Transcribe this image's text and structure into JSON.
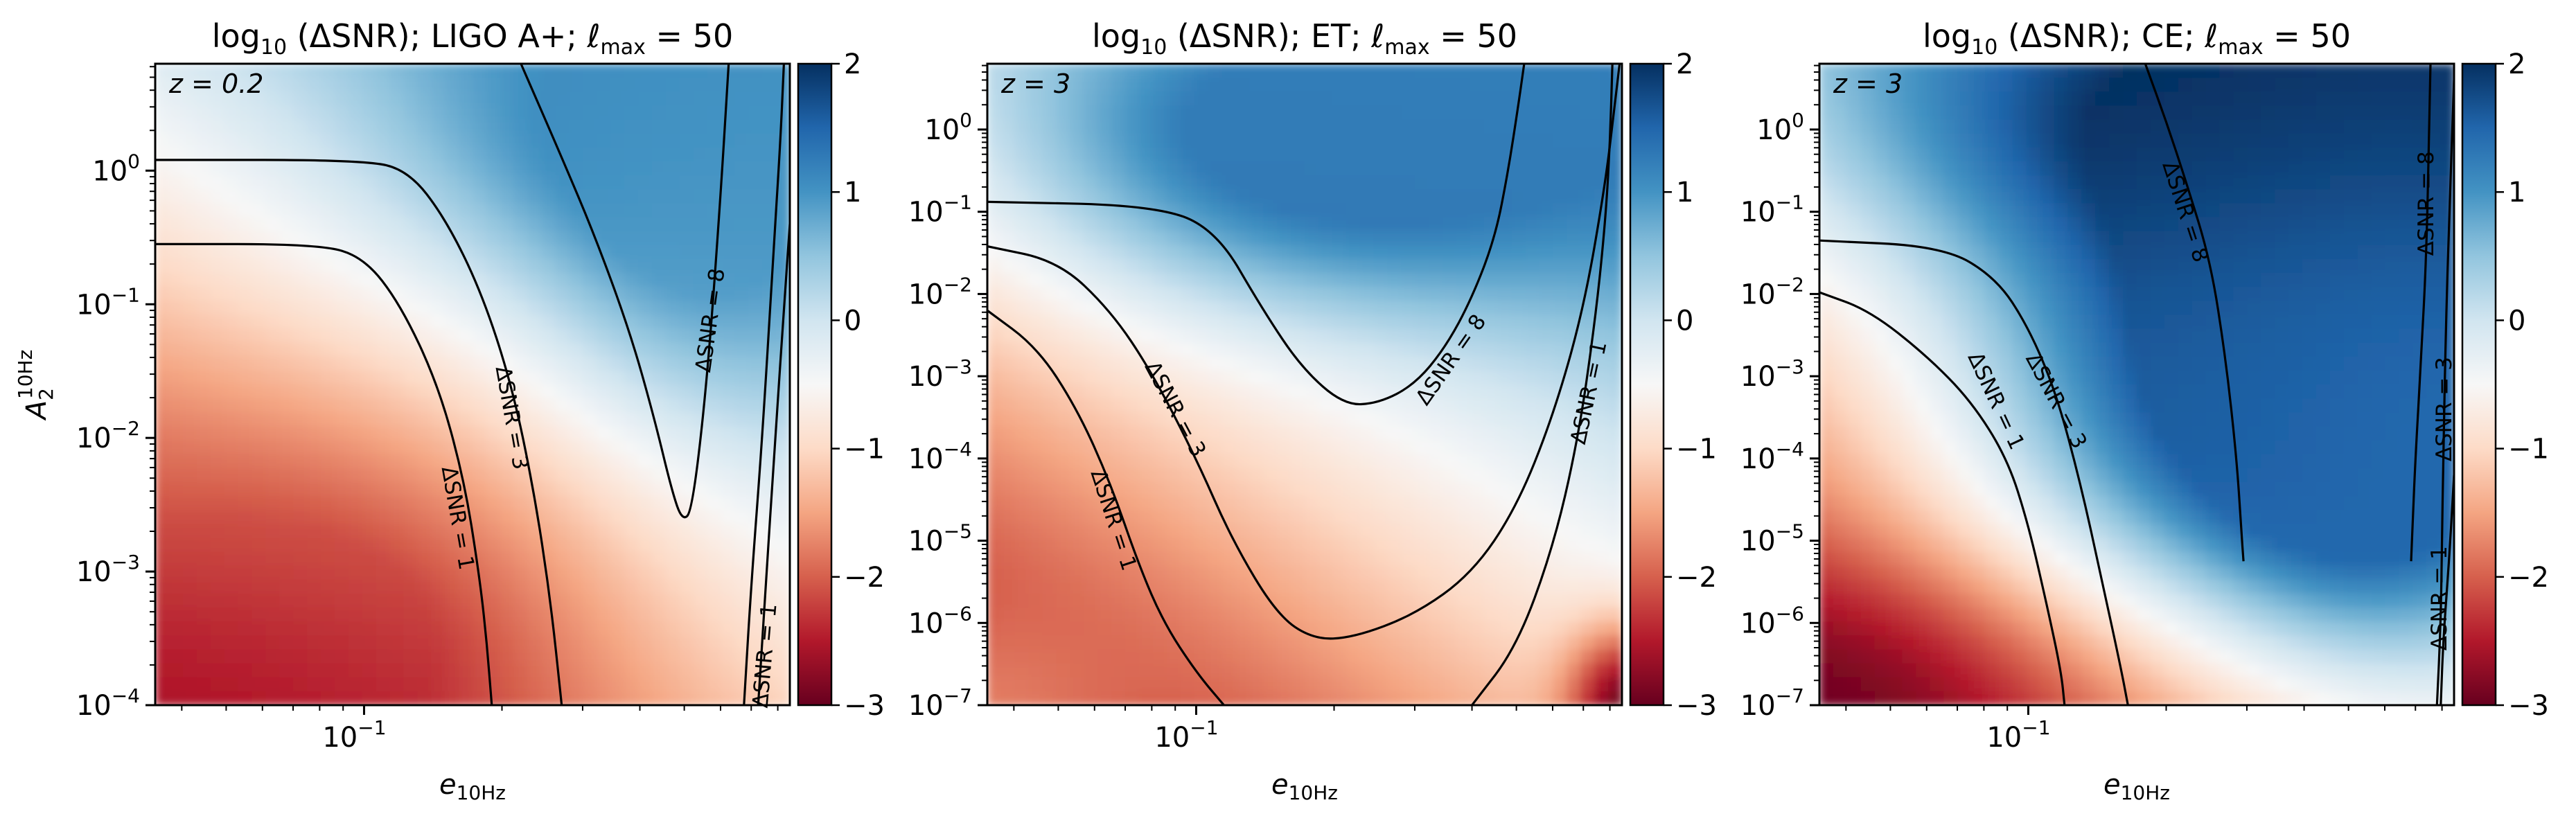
{
  "figure": {
    "shared_xlabel": "e",
    "shared_xlabel_sub": "10Hz",
    "shared_ylabel": "A",
    "shared_ylabel_sub": "2",
    "shared_ylabel_sup": "10Hz"
  },
  "colorbar": {
    "ticks": [
      "2",
      "1",
      "0",
      "−1",
      "−2",
      "−3"
    ],
    "range": [
      -3,
      2
    ],
    "colors": {
      "low": "#67001f",
      "mid_low": "#f4a582",
      "neutral": "#f7f7f7",
      "mid_high": "#92c5de",
      "high": "#053061"
    }
  },
  "chart_data": [
    {
      "type": "heatmap",
      "title_prefix": "log",
      "title_sub": "10",
      "title_quantity": " (ΔSNR); LIGO A+; ",
      "title_ell": "ℓ",
      "title_ell_sub": "max",
      "title_suffix": " = 50",
      "redshift": "z = 0.2",
      "xscale": "log",
      "yscale": "log",
      "xlim": [
        0.035,
        0.85
      ],
      "ylim_exp": [
        -4,
        0.8
      ],
      "xticks": [
        {
          "value": 0.1,
          "label": "10",
          "exp": "−1"
        }
      ],
      "yticks": [
        {
          "exp_value": 0,
          "label": "10",
          "exp": "0"
        },
        {
          "exp_value": -1,
          "label": "10",
          "exp": "−1"
        },
        {
          "exp_value": -2,
          "label": "10",
          "exp": "−2"
        },
        {
          "exp_value": -3,
          "label": "10",
          "exp": "−3"
        },
        {
          "exp_value": -4,
          "label": "10",
          "exp": "−4"
        }
      ],
      "show_ylabel": true,
      "contours": [
        {
          "label": "ΔSNR = 1",
          "label_at": [
            0.16,
            -2.6
          ],
          "label_angle": 80,
          "points": [
            [
              0.035,
              -0.55
            ],
            [
              0.08,
              -0.55
            ],
            [
              0.1,
              -0.65
            ],
            [
              0.12,
              -1.0
            ],
            [
              0.145,
              -1.6
            ],
            [
              0.165,
              -2.3
            ],
            [
              0.178,
              -3.0
            ],
            [
              0.185,
              -3.5
            ],
            [
              0.19,
              -4.0
            ]
          ]
        },
        {
          "label": "ΔSNR = 3",
          "label_at": [
            0.21,
            -1.85
          ],
          "label_angle": 80,
          "points": [
            [
              0.035,
              0.08
            ],
            [
              0.1,
              0.08
            ],
            [
              0.125,
              0.0
            ],
            [
              0.15,
              -0.35
            ],
            [
              0.18,
              -0.9
            ],
            [
              0.21,
              -1.6
            ],
            [
              0.235,
              -2.4
            ],
            [
              0.255,
              -3.2
            ],
            [
              0.27,
              -4.0
            ]
          ]
        },
        {
          "label": "ΔSNR = 8",
          "label_at": [
            0.57,
            -1.12
          ],
          "label_angle": -82,
          "points": [
            [
              0.22,
              0.8
            ],
            [
              0.27,
              0.1
            ],
            [
              0.32,
              -0.5
            ],
            [
              0.38,
              -1.2
            ],
            [
              0.43,
              -1.85
            ],
            [
              0.47,
              -2.4
            ],
            [
              0.495,
              -2.62
            ],
            [
              0.52,
              -2.55
            ],
            [
              0.56,
              -1.6
            ],
            [
              0.6,
              -0.2
            ],
            [
              0.625,
              0.8
            ]
          ]
        },
        {
          "label": "ΔSNR = 1",
          "label_at": [
            0.75,
            -3.63
          ],
          "label_angle": -85,
          "points": [
            [
              0.675,
              -4.0
            ],
            [
              0.7,
              -3.1
            ],
            [
              0.74,
              -2.0
            ],
            [
              0.78,
              -0.7
            ],
            [
              0.81,
              0.2
            ],
            [
              0.825,
              0.8
            ]
          ]
        },
        {
          "label": "",
          "points": [
            [
              0.725,
              -4.0
            ],
            [
              0.75,
              -3.2
            ],
            [
              0.79,
              -2.0
            ],
            [
              0.83,
              -0.9
            ],
            [
              0.85,
              -0.4
            ]
          ]
        }
      ],
      "field_blobs": [
        {
          "at": [
            0.42,
            0.5
          ],
          "value": 1.1,
          "spread": [
            0.5,
            1.1
          ]
        },
        {
          "at": [
            0.6,
            -0.3
          ],
          "value": 0.9,
          "spread": [
            0.35,
            1.4
          ]
        },
        {
          "at": [
            0.04,
            -4.0
          ],
          "value": -2.9,
          "spread": [
            0.55,
            1.0
          ]
        },
        {
          "at": [
            0.06,
            -3.2
          ],
          "value": -2.0,
          "spread": [
            0.7,
            1.5
          ]
        }
      ]
    },
    {
      "type": "heatmap",
      "title_prefix": "log",
      "title_sub": "10",
      "title_quantity": " (ΔSNR); ET; ",
      "title_ell": "ℓ",
      "title_ell_sub": "max",
      "title_suffix": " = 50",
      "redshift": "z = 3",
      "xscale": "log",
      "yscale": "log",
      "xlim": [
        0.035,
        0.85
      ],
      "ylim_exp": [
        -7,
        0.8
      ],
      "xticks": [
        {
          "value": 0.1,
          "label": "10",
          "exp": "−1"
        }
      ],
      "yticks": [
        {
          "exp_value": 0,
          "label": "10",
          "exp": "0"
        },
        {
          "exp_value": -1,
          "label": "10",
          "exp": "−1"
        },
        {
          "exp_value": -2,
          "label": "10",
          "exp": "−2"
        },
        {
          "exp_value": -3,
          "label": "10",
          "exp": "−3"
        },
        {
          "exp_value": -4,
          "label": "10",
          "exp": "−4"
        },
        {
          "exp_value": -5,
          "label": "10",
          "exp": "−5"
        },
        {
          "exp_value": -6,
          "label": "10",
          "exp": "−6"
        },
        {
          "exp_value": -7,
          "label": "10",
          "exp": "−7"
        }
      ],
      "show_ylabel": false,
      "contours": [
        {
          "label": "ΔSNR = 1",
          "label_at": [
            0.066,
            -4.75
          ],
          "label_angle": 72,
          "points": [
            [
              0.035,
              -2.2
            ],
            [
              0.045,
              -2.65
            ],
            [
              0.055,
              -3.4
            ],
            [
              0.065,
              -4.3
            ],
            [
              0.075,
              -5.3
            ],
            [
              0.085,
              -6.0
            ],
            [
              0.1,
              -6.6
            ],
            [
              0.115,
              -7.0
            ]
          ]
        },
        {
          "label": "ΔSNR = 3",
          "label_at": [
            0.09,
            -3.4
          ],
          "label_angle": 62,
          "points": [
            [
              0.035,
              -1.42
            ],
            [
              0.05,
              -1.6
            ],
            [
              0.065,
              -2.2
            ],
            [
              0.08,
              -2.95
            ],
            [
              0.1,
              -4.0
            ],
            [
              0.12,
              -5.0
            ],
            [
              0.15,
              -5.9
            ],
            [
              0.18,
              -6.2
            ],
            [
              0.22,
              -6.18
            ],
            [
              0.3,
              -5.9
            ],
            [
              0.4,
              -5.4
            ],
            [
              0.5,
              -4.6
            ],
            [
              0.6,
              -3.5
            ],
            [
              0.7,
              -2.2
            ],
            [
              0.78,
              -0.7
            ],
            [
              0.82,
              0.3
            ],
            [
              0.84,
              0.8
            ]
          ]
        },
        {
          "label": "ΔSNR = 1",
          "label_at": [
            0.72,
            -3.2
          ],
          "label_angle": -78,
          "points": [
            [
              0.4,
              -7.0
            ],
            [
              0.5,
              -6.3
            ],
            [
              0.6,
              -5.1
            ],
            [
              0.68,
              -3.8
            ],
            [
              0.74,
              -2.4
            ],
            [
              0.78,
              -1.2
            ],
            [
              0.8,
              -0.2
            ],
            [
              0.81,
              0.8
            ]
          ]
        },
        {
          "label": "ΔSNR = 8",
          "label_at": [
            0.36,
            -2.8
          ],
          "label_angle": -55,
          "points": [
            [
              0.035,
              -0.88
            ],
            [
              0.08,
              -0.92
            ],
            [
              0.11,
              -1.2
            ],
            [
              0.14,
              -2.2
            ],
            [
              0.17,
              -2.9
            ],
            [
              0.21,
              -3.35
            ],
            [
              0.25,
              -3.33
            ],
            [
              0.3,
              -3.1
            ],
            [
              0.35,
              -2.65
            ],
            [
              0.4,
              -2.05
            ],
            [
              0.45,
              -1.3
            ],
            [
              0.48,
              -0.5
            ],
            [
              0.505,
              0.3
            ],
            [
              0.52,
              0.8
            ]
          ]
        }
      ],
      "field_blobs": [
        {
          "at": [
            0.25,
            -0.5
          ],
          "value": 1.3,
          "spread": [
            0.7,
            1.7
          ]
        },
        {
          "at": [
            0.5,
            0.6
          ],
          "value": 1.2,
          "spread": [
            0.8,
            1.3
          ]
        },
        {
          "at": [
            0.035,
            -7.0
          ],
          "value": -1.8,
          "spread": [
            0.45,
            1.6
          ]
        },
        {
          "at": [
            0.85,
            -7.0
          ],
          "value": -2.9,
          "spread": [
            0.12,
            0.9
          ]
        }
      ]
    },
    {
      "type": "heatmap",
      "title_prefix": "log",
      "title_sub": "10",
      "title_quantity": " (ΔSNR); CE; ",
      "title_ell": "ℓ",
      "title_ell_sub": "max",
      "title_suffix": " = 50",
      "redshift": "z = 3",
      "xscale": "log",
      "yscale": "log",
      "xlim": [
        0.035,
        0.85
      ],
      "ylim_exp": [
        -7,
        0.8
      ],
      "xticks": [
        {
          "value": 0.1,
          "label": "10",
          "exp": "−1"
        }
      ],
      "yticks": [
        {
          "exp_value": 0,
          "label": "10",
          "exp": "0"
        },
        {
          "exp_value": -1,
          "label": "10",
          "exp": "−1"
        },
        {
          "exp_value": -2,
          "label": "10",
          "exp": "−2"
        },
        {
          "exp_value": -3,
          "label": "10",
          "exp": "−3"
        },
        {
          "exp_value": -4,
          "label": "10",
          "exp": "−4"
        },
        {
          "exp_value": -5,
          "label": "10",
          "exp": "−5"
        },
        {
          "exp_value": -6,
          "label": "10",
          "exp": "−6"
        },
        {
          "exp_value": -7,
          "label": "10",
          "exp": "−7"
        }
      ],
      "show_ylabel": false,
      "contours": [
        {
          "label": "ΔSNR = 1",
          "label_at": [
            0.085,
            -3.3
          ],
          "label_angle": 65,
          "points": [
            [
              0.035,
              -1.98
            ],
            [
              0.045,
              -2.2
            ],
            [
              0.06,
              -2.75
            ],
            [
              0.075,
              -3.3
            ],
            [
              0.09,
              -4.0
            ],
            [
              0.1,
              -4.8
            ],
            [
              0.11,
              -5.8
            ],
            [
              0.118,
              -6.6
            ],
            [
              0.12,
              -7.0
            ]
          ]
        },
        {
          "label": "ΔSNR = 3",
          "label_at": [
            0.115,
            -3.3
          ],
          "label_angle": 62,
          "points": [
            [
              0.035,
              -1.35
            ],
            [
              0.065,
              -1.42
            ],
            [
              0.085,
              -1.8
            ],
            [
              0.1,
              -2.4
            ],
            [
              0.115,
              -3.2
            ],
            [
              0.13,
              -4.3
            ],
            [
              0.145,
              -5.5
            ],
            [
              0.16,
              -6.6
            ],
            [
              0.165,
              -7.0
            ]
          ]
        },
        {
          "label": "ΔSNR = 8",
          "label_at": [
            0.22,
            -1.0
          ],
          "label_angle": 72,
          "points": [
            [
              0.18,
              0.8
            ],
            [
              0.2,
              0.1
            ],
            [
              0.22,
              -0.6
            ],
            [
              0.25,
              -1.6
            ],
            [
              0.27,
              -2.8
            ],
            [
              0.285,
              -4.0
            ],
            [
              0.292,
              -4.9
            ],
            [
              0.295,
              -5.25
            ]
          ]
        },
        {
          "label": "ΔSNR = 8",
          "label_at": [
            0.74,
            -0.9
          ],
          "label_angle": -90,
          "points": [
            [
              0.755,
              0.8
            ],
            [
              0.75,
              0.0
            ],
            [
              0.74,
              -1.5
            ],
            [
              0.72,
              -2.8
            ],
            [
              0.7,
              -4.0
            ],
            [
              0.69,
              -4.8
            ],
            [
              0.685,
              -5.25
            ]
          ]
        },
        {
          "label": "ΔSNR = 3",
          "label_at": [
            0.81,
            -3.4
          ],
          "label_angle": -90,
          "points": [
            [
              0.85,
              0.6
            ],
            [
              0.83,
              -1.0
            ],
            [
              0.815,
              -2.5
            ],
            [
              0.805,
              -4.0
            ],
            [
              0.8,
              -5.0
            ],
            [
              0.795,
              -6.0
            ],
            [
              0.78,
              -7.0
            ]
          ]
        },
        {
          "label": "ΔSNR = 1",
          "label_at": [
            0.79,
            -5.7
          ],
          "label_angle": -90,
          "points": [
            [
              0.85,
              -4.2
            ],
            [
              0.83,
              -5.2
            ],
            [
              0.805,
              -6.2
            ],
            [
              0.795,
              -7.0
            ]
          ]
        }
      ],
      "field_blobs": [
        {
          "at": [
            0.45,
            0.4
          ],
          "value": 2.1,
          "spread": [
            1.0,
            2.0
          ]
        },
        {
          "at": [
            0.3,
            -3.0
          ],
          "value": 1.6,
          "spread": [
            0.6,
            3.0
          ]
        },
        {
          "at": [
            0.7,
            -3.0
          ],
          "value": 1.4,
          "spread": [
            0.4,
            3.0
          ]
        },
        {
          "at": [
            0.035,
            -7.0
          ],
          "value": -3.0,
          "spread": [
            0.6,
            1.6
          ]
        }
      ]
    }
  ]
}
